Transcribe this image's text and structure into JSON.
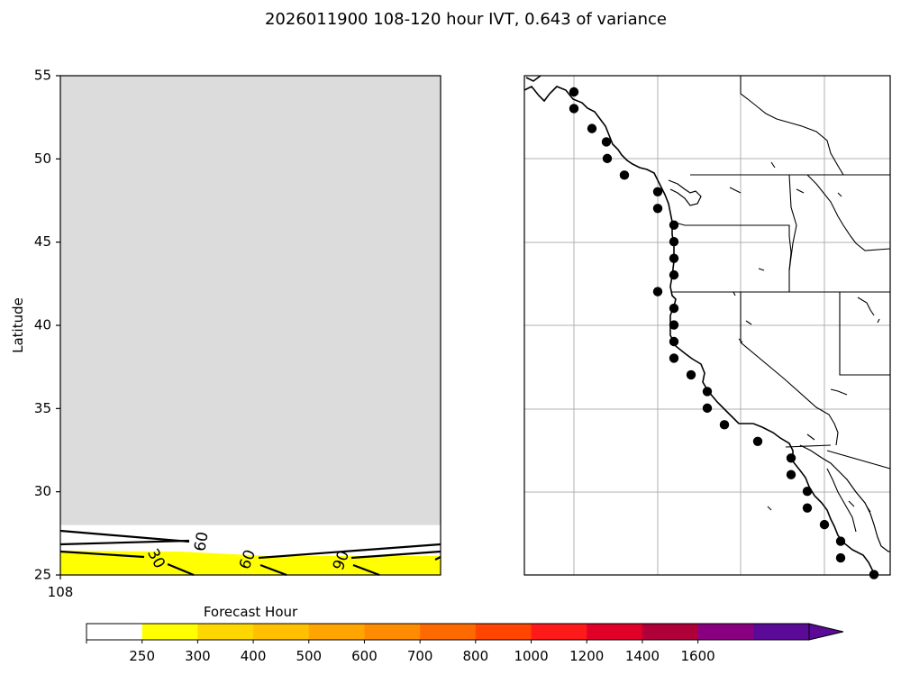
{
  "figure": {
    "title": "2026011900 108-120 hour IVT, 0.643 of variance"
  },
  "chart_data": [
    {
      "type": "contour",
      "panel": "left",
      "title": "",
      "xlabel": "",
      "ylabel": "Latitude",
      "ylim": [
        25,
        55
      ],
      "yticks": [
        25,
        30,
        35,
        40,
        45,
        50,
        55
      ],
      "xticks": [
        "108"
      ],
      "masked_region": {
        "lat_from": 28,
        "lat_to": 55,
        "color": "#dcdcdc"
      },
      "filled_band": {
        "level": 250,
        "lat_from": 25,
        "lat_to": 26.5,
        "color": "#ffff00"
      },
      "contour_labels": [
        "60",
        "30",
        "60",
        "90"
      ],
      "grid": false
    },
    {
      "type": "map",
      "panel": "right",
      "region": "US West Coast",
      "grid": true,
      "markers": {
        "count": 30,
        "color": "#000000",
        "lat": [
          55,
          54,
          52.8,
          52,
          51,
          50,
          49,
          48,
          47,
          46,
          45,
          44,
          43,
          42,
          41,
          40,
          39,
          38,
          37,
          36,
          35,
          34,
          33,
          32,
          31,
          30,
          29,
          28,
          27,
          26
        ]
      }
    },
    {
      "type": "colorbar",
      "label": "Forecast Hour",
      "levels": [
        0,
        250,
        300,
        400,
        500,
        600,
        700,
        800,
        1000,
        1200,
        1400,
        1600
      ],
      "tick_labels": [
        "250",
        "300",
        "400",
        "500",
        "600",
        "700",
        "800",
        "1000",
        "1200",
        "1400",
        "1600"
      ],
      "colors": [
        "#ffffff",
        "#ffff00",
        "#ffd700",
        "#ffc000",
        "#ffa500",
        "#ff8c00",
        "#ff6a00",
        "#ff4500",
        "#ff1a1a",
        "#e00028",
        "#b0003a",
        "#880080",
        "#5a0a96"
      ],
      "extend": "max"
    }
  ]
}
